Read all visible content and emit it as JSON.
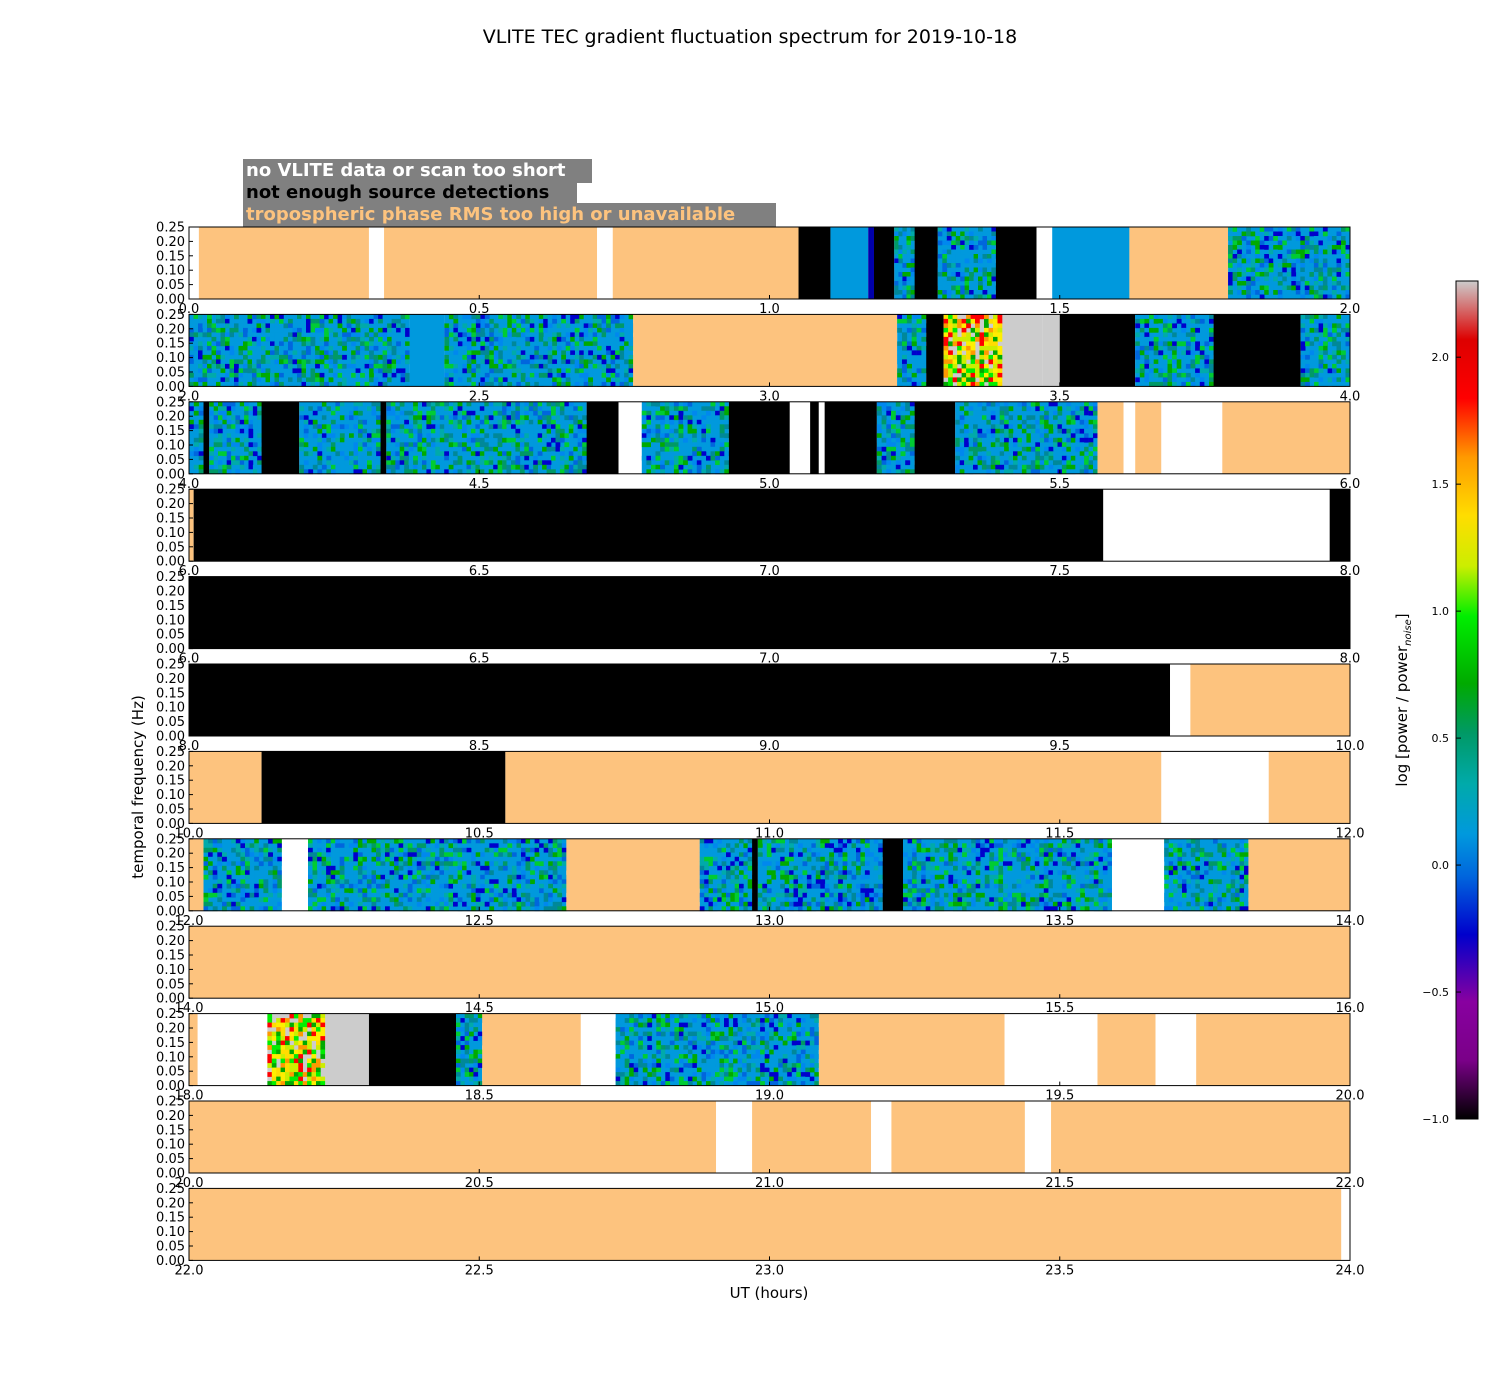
{
  "chart_data": {
    "type": "heatmap",
    "title": "VLITE TEC gradient fluctuation spectrum for 2019-10-18",
    "xlabel": "UT (hours)",
    "ylabel": "temporal frequency (Hz)",
    "ylim": [
      0,
      0.25
    ],
    "yticks": [
      "0.00",
      "0.05",
      "0.10",
      "0.15",
      "0.20",
      "0.25"
    ],
    "colorbar": {
      "label": "log [power / power",
      "label_sub": "noise",
      "label_close": "]",
      "range": [
        -1.0,
        2.3
      ],
      "ticks": [
        {
          "v": -1.0,
          "t": "−1.0"
        },
        {
          "v": -0.5,
          "t": "−0.5"
        },
        {
          "v": 0.0,
          "t": "0.0"
        },
        {
          "v": 0.5,
          "t": "0.5"
        },
        {
          "v": 1.0,
          "t": "1.0"
        },
        {
          "v": 1.5,
          "t": "1.5"
        },
        {
          "v": 2.0,
          "t": "2.0"
        }
      ]
    },
    "legend": [
      {
        "text": "no VLITE data or scan too short",
        "color": "#ffffff"
      },
      {
        "text": "not enough source detections",
        "color": "#000000"
      },
      {
        "text": "tropospheric phase RMS too high or unavailable",
        "color": "#fdc37e"
      }
    ],
    "category_colors": {
      "no_data": "#ffffff",
      "few_detections": "#000000",
      "tropo": "#fdc37e",
      "grey": "#cccccc"
    },
    "panels": [
      {
        "xticks": [
          "0.0",
          "0.5",
          "1.0",
          "1.5",
          "2.0"
        ],
        "segments": [
          [
            0,
            0.017,
            "W"
          ],
          [
            0.017,
            0.31,
            "T"
          ],
          [
            0.31,
            0.336,
            "W"
          ],
          [
            0.336,
            0.703,
            "T"
          ],
          [
            0.703,
            0.73,
            "W"
          ],
          [
            0.73,
            1.05,
            "T"
          ],
          [
            1.05,
            1.105,
            "K"
          ],
          [
            1.105,
            1.17,
            "B"
          ],
          [
            1.17,
            1.18,
            "V"
          ],
          [
            1.18,
            1.215,
            "K"
          ],
          [
            1.215,
            1.25,
            "D"
          ],
          [
            1.25,
            1.29,
            "K"
          ],
          [
            1.29,
            1.39,
            "D"
          ],
          [
            1.39,
            1.46,
            "K"
          ],
          [
            1.46,
            1.487,
            "W"
          ],
          [
            1.487,
            1.62,
            "B"
          ],
          [
            1.62,
            1.79,
            "T"
          ],
          [
            1.79,
            2.0,
            "D"
          ]
        ]
      },
      {
        "xticks": [
          "2.0",
          "2.5",
          "3.0",
          "3.5",
          "4.0"
        ],
        "segments": [
          [
            2.0,
            2.38,
            "D"
          ],
          [
            2.38,
            2.44,
            "B"
          ],
          [
            2.44,
            2.765,
            "D"
          ],
          [
            2.765,
            3.22,
            "T"
          ],
          [
            3.22,
            3.27,
            "D"
          ],
          [
            3.27,
            3.3,
            "K"
          ],
          [
            3.3,
            3.47,
            "H"
          ],
          [
            3.47,
            3.5,
            "G"
          ],
          [
            3.5,
            3.63,
            "K"
          ],
          [
            3.63,
            3.765,
            "D"
          ],
          [
            3.765,
            3.915,
            "K"
          ],
          [
            3.915,
            4.0,
            "D"
          ]
        ]
      },
      {
        "xticks": [
          "4.0",
          "4.5",
          "5.0",
          "5.5",
          "6.0"
        ],
        "segments": [
          [
            4.0,
            4.025,
            "D"
          ],
          [
            4.025,
            4.035,
            "K"
          ],
          [
            4.035,
            4.125,
            "D"
          ],
          [
            4.125,
            4.19,
            "K"
          ],
          [
            4.19,
            4.33,
            "D"
          ],
          [
            4.33,
            4.34,
            "K"
          ],
          [
            4.34,
            4.685,
            "D"
          ],
          [
            4.685,
            4.74,
            "K"
          ],
          [
            4.74,
            4.78,
            "W"
          ],
          [
            4.78,
            4.93,
            "D"
          ],
          [
            4.93,
            5.035,
            "K"
          ],
          [
            5.035,
            5.07,
            "W"
          ],
          [
            5.07,
            5.085,
            "K"
          ],
          [
            5.085,
            5.095,
            "W"
          ],
          [
            5.095,
            5.185,
            "K"
          ],
          [
            5.185,
            5.25,
            "D"
          ],
          [
            5.25,
            5.32,
            "K"
          ],
          [
            5.32,
            5.565,
            "D"
          ],
          [
            5.565,
            5.61,
            "T"
          ],
          [
            5.61,
            5.63,
            "W"
          ],
          [
            5.63,
            5.675,
            "T"
          ],
          [
            5.675,
            5.78,
            "W"
          ],
          [
            5.78,
            6.0,
            "T"
          ]
        ]
      },
      {
        "xticks": [
          "6.0",
          "6.5",
          "7.0",
          "7.5",
          "8.0"
        ],
        "segments": [
          [
            6.0,
            6.008,
            "T"
          ],
          [
            6.008,
            7.575,
            "K"
          ],
          [
            7.575,
            7.965,
            "W"
          ],
          [
            7.965,
            8.0,
            "K"
          ]
        ]
      },
      {
        "xticks": [
          "6.0",
          "6.5",
          "7.0",
          "7.5",
          "8.0"
        ],
        "segments": [
          [
            6.0,
            8.0,
            "K"
          ]
        ]
      },
      {
        "xticks": [
          "8.0",
          "8.5",
          "9.0",
          "9.5",
          "10.0"
        ],
        "segments": [
          [
            8.0,
            9.69,
            "K"
          ],
          [
            9.69,
            9.725,
            "W"
          ],
          [
            9.725,
            10.0,
            "T"
          ]
        ]
      },
      {
        "xticks": [
          "10.0",
          "10.5",
          "11.0",
          "11.5",
          "12.0"
        ],
        "segments": [
          [
            10.0,
            10.125,
            "T"
          ],
          [
            10.125,
            10.545,
            "K"
          ],
          [
            10.545,
            11.675,
            "T"
          ],
          [
            11.675,
            11.86,
            "W"
          ],
          [
            11.86,
            12.0,
            "T"
          ]
        ]
      },
      {
        "xticks": [
          "12.0",
          "12.5",
          "13.0",
          "13.5",
          "14.0"
        ],
        "segments": [
          [
            12.0,
            12.025,
            "T"
          ],
          [
            12.025,
            12.16,
            "D"
          ],
          [
            12.16,
            12.205,
            "W"
          ],
          [
            12.205,
            12.65,
            "D"
          ],
          [
            12.65,
            12.88,
            "T"
          ],
          [
            12.88,
            12.97,
            "D"
          ],
          [
            12.97,
            12.98,
            "K"
          ],
          [
            12.98,
            13.195,
            "D"
          ],
          [
            13.195,
            13.23,
            "K"
          ],
          [
            13.23,
            13.59,
            "D"
          ],
          [
            13.59,
            13.68,
            "W"
          ],
          [
            13.68,
            13.825,
            "D"
          ],
          [
            13.825,
            14.0,
            "T"
          ]
        ]
      },
      {
        "xticks": [
          "14.0",
          "14.5",
          "15.0",
          "15.5",
          "16.0"
        ],
        "segments": [
          [
            14.0,
            16.0,
            "T"
          ]
        ]
      },
      {
        "xticks": [
          "18.0",
          "18.5",
          "19.0",
          "19.5",
          "20.0"
        ],
        "segments": [
          [
            18.0,
            18.015,
            "T"
          ],
          [
            18.015,
            18.135,
            "W"
          ],
          [
            18.135,
            18.31,
            "H"
          ],
          [
            18.31,
            18.46,
            "K"
          ],
          [
            18.46,
            18.505,
            "D"
          ],
          [
            18.505,
            18.675,
            "T"
          ],
          [
            18.675,
            18.735,
            "W"
          ],
          [
            18.735,
            19.085,
            "D"
          ],
          [
            19.085,
            19.405,
            "T"
          ],
          [
            19.405,
            19.565,
            "W"
          ],
          [
            19.565,
            19.665,
            "T"
          ],
          [
            19.665,
            19.735,
            "W"
          ],
          [
            19.735,
            20.0,
            "T"
          ]
        ]
      },
      {
        "xticks": [
          "20.0",
          "20.5",
          "21.0",
          "21.5",
          "22.0"
        ],
        "segments": [
          [
            20.0,
            20.908,
            "T"
          ],
          [
            20.908,
            20.97,
            "W"
          ],
          [
            20.97,
            21.175,
            "T"
          ],
          [
            21.175,
            21.21,
            "W"
          ],
          [
            21.21,
            21.44,
            "T"
          ],
          [
            21.44,
            21.485,
            "W"
          ],
          [
            21.485,
            22.0,
            "T"
          ]
        ]
      },
      {
        "xticks": [
          "22.0",
          "22.5",
          "23.0",
          "23.5",
          "24.0"
        ],
        "segments": [
          [
            22.0,
            23.985,
            "T"
          ],
          [
            23.985,
            24.0,
            "W"
          ]
        ]
      }
    ],
    "xrange_per_panel_hours": 2.0
  }
}
